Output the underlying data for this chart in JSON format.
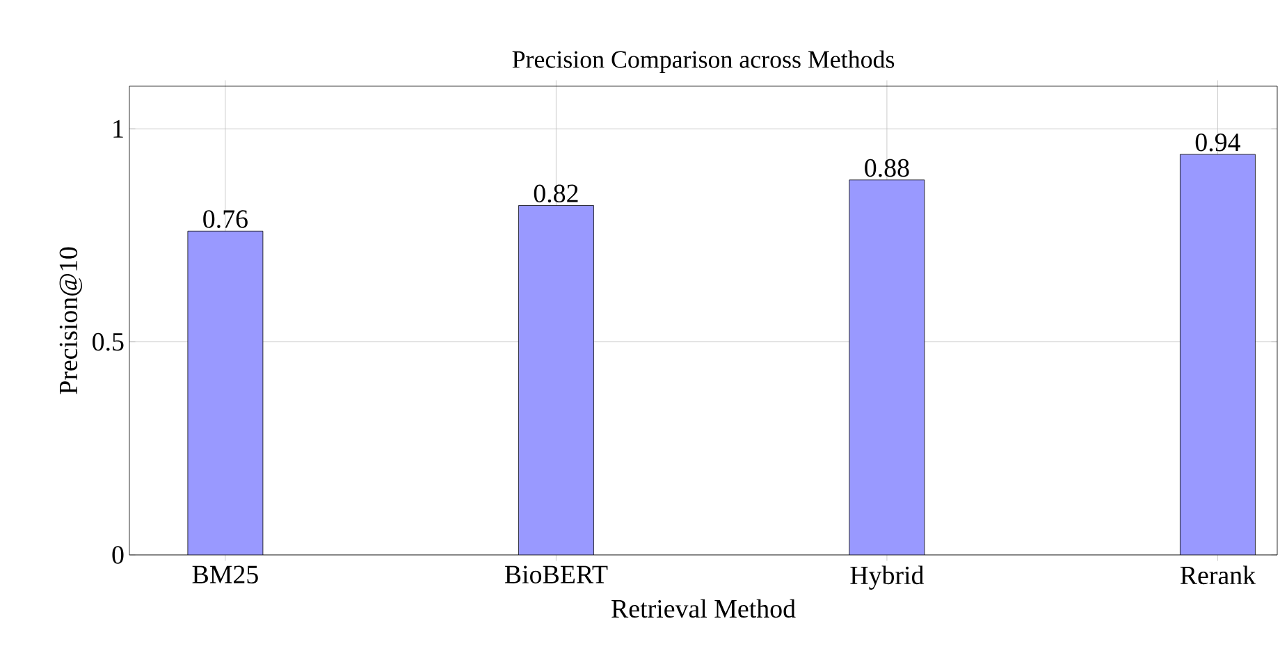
{
  "chart_data": {
    "type": "bar",
    "title": "Precision Comparison across Methods",
    "xlabel": "Retrieval Method",
    "ylabel": "Precision@10",
    "categories": [
      "BM25",
      "BioBERT",
      "Hybrid",
      "Rerank"
    ],
    "values": [
      0.76,
      0.82,
      0.88,
      0.94
    ],
    "color": "#9999ff",
    "ylim": [
      0,
      1.1
    ],
    "yticks": [
      0,
      0.5,
      1
    ],
    "grid": true,
    "data_labels": true
  }
}
